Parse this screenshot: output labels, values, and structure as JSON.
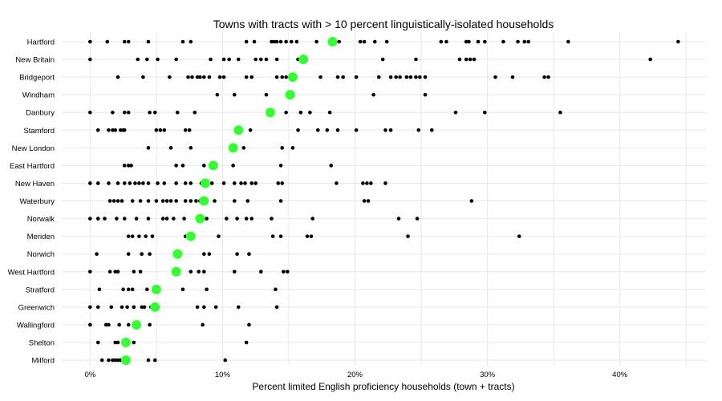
{
  "chart_data": {
    "type": "scatter",
    "title": "Towns with tracts with > 10 percent linguistically-isolated households",
    "xlabel": "Percent limited English proficiency households (town + tracts)",
    "ylabel": "",
    "xlim": [
      -2.2,
      46.5
    ],
    "x_ticks": [
      0,
      10,
      20,
      30,
      40
    ],
    "x_tick_labels": [
      "0%",
      "10%",
      "20%",
      "30%",
      "40%"
    ],
    "grid": true,
    "colors": {
      "town_point": "#33ff33",
      "tract_point": "#000000"
    },
    "categories": [
      "Hartford",
      "New Britain",
      "Bridgeport",
      "Windham",
      "Danbury",
      "Stamford",
      "New London",
      "East Hartford",
      "New Haven",
      "Waterbury",
      "Norwalk",
      "Meriden",
      "Norwich",
      "West Hartford",
      "Stratford",
      "Greenwich",
      "Wallingford",
      "Shelton",
      "Milford"
    ],
    "series": [
      {
        "name": "",
        "role": "town",
        "values": [
          18.3,
          16.1,
          15.3,
          15.1,
          13.6,
          11.2,
          10.8,
          9.3,
          8.7,
          8.6,
          8.3,
          7.6,
          6.6,
          6.5,
          5.0,
          4.9,
          3.5,
          2.7,
          2.7
        ]
      },
      {
        "name": "",
        "role": "tract",
        "points": [
          [
            0.0,
            1.3,
            2.6,
            2.9,
            4.4,
            7.0,
            7.6,
            11.8,
            12.4,
            13.7,
            13.9,
            14.1,
            14.4,
            14.8,
            15.2,
            15.6,
            17.1,
            18.8,
            20.4,
            20.7,
            21.5,
            22.4,
            26.5,
            26.9,
            28.4,
            28.6,
            29.3,
            29.8,
            31.2,
            32.3,
            32.8,
            33.1,
            36.1,
            44.4
          ],
          [
            0.0,
            3.6,
            4.3,
            5.1,
            6.5,
            9.1,
            10.1,
            10.5,
            11.2,
            12.5,
            12.9,
            13.3,
            14.1,
            15.7,
            22.1,
            24.6,
            27.9,
            28.4,
            28.7,
            29.0,
            42.3
          ],
          [
            2.1,
            4.0,
            6.0,
            7.4,
            7.7,
            8.1,
            8.3,
            8.6,
            9.0,
            9.8,
            10.1,
            11.8,
            12.2,
            14.1,
            14.5,
            14.8,
            17.4,
            18.7,
            19.1,
            20.1,
            21.8,
            22.7,
            23.1,
            23.4,
            23.9,
            24.2,
            24.6,
            24.9,
            25.3,
            30.6,
            31.9,
            34.3,
            34.6
          ],
          [
            9.6,
            10.9,
            13.3,
            21.4,
            25.3
          ],
          [
            0.0,
            1.7,
            2.6,
            2.9,
            4.5,
            4.9,
            6.6,
            7.9,
            14.8,
            15.9,
            16.6,
            18.1,
            27.6,
            29.8,
            35.5
          ],
          [
            0.6,
            1.4,
            1.7,
            1.9,
            2.3,
            2.5,
            2.6,
            5.0,
            5.3,
            5.6,
            7.2,
            7.5,
            12.1,
            15.7,
            17.2,
            17.9,
            18.7,
            20.1,
            22.3,
            22.7,
            24.8,
            25.8
          ],
          [
            4.4,
            6.1,
            7.6,
            11.6,
            14.5,
            15.3
          ],
          [
            2.6,
            2.9,
            3.1,
            6.5,
            7.0,
            8.6,
            10.8,
            14.4,
            18.2
          ],
          [
            0.0,
            0.6,
            1.4,
            2.1,
            2.6,
            3.0,
            3.4,
            3.7,
            4.0,
            4.4,
            5.1,
            5.6,
            6.5,
            7.2,
            7.6,
            8.4,
            9.2,
            10.1,
            10.9,
            11.4,
            11.7,
            12.2,
            12.5,
            14.2,
            14.5,
            18.6,
            20.6,
            20.9,
            21.2,
            22.3
          ],
          [
            1.5,
            1.8,
            2.1,
            2.4,
            3.2,
            3.8,
            4.4,
            5.0,
            5.5,
            5.8,
            6.1,
            6.5,
            7.2,
            7.6,
            8.0,
            8.3,
            9.4,
            10.9,
            11.9,
            14.4,
            20.7,
            21.0,
            28.8
          ],
          [
            0.0,
            0.6,
            1.1,
            2.0,
            2.6,
            3.5,
            4.4,
            5.5,
            5.8,
            6.3,
            7.1,
            8.8,
            10.3,
            11.1,
            11.8,
            12.2,
            13.7,
            16.8,
            23.3,
            24.7
          ],
          [
            2.9,
            3.2,
            3.7,
            4.2,
            4.7,
            7.2,
            9.7,
            13.8,
            14.4,
            16.4,
            16.7,
            24.0,
            32.4
          ],
          [
            0.5,
            2.9,
            3.9,
            4.5,
            8.6,
            9.0,
            11.1,
            12.0
          ],
          [
            0.0,
            1.5,
            1.9,
            2.1,
            3.3,
            3.8,
            7.6,
            8.2,
            8.6,
            10.9,
            12.9,
            14.6,
            14.9
          ],
          [
            0.7,
            2.5,
            2.9,
            3.2,
            4.3,
            7.0,
            8.8,
            14.0
          ],
          [
            0.0,
            0.6,
            1.6,
            2.4,
            2.8,
            3.3,
            3.9,
            4.1,
            4.6,
            8.1,
            8.6,
            9.5,
            11.2,
            14.1
          ],
          [
            0.0,
            1.2,
            1.4,
            2.2,
            2.9,
            4.5,
            8.5,
            12.0
          ],
          [
            0.6,
            1.9,
            2.1,
            3.3,
            11.8
          ],
          [
            0.9,
            1.4,
            1.7,
            1.9,
            2.1,
            2.3,
            4.4,
            4.9,
            10.2
          ]
        ]
      }
    ]
  }
}
